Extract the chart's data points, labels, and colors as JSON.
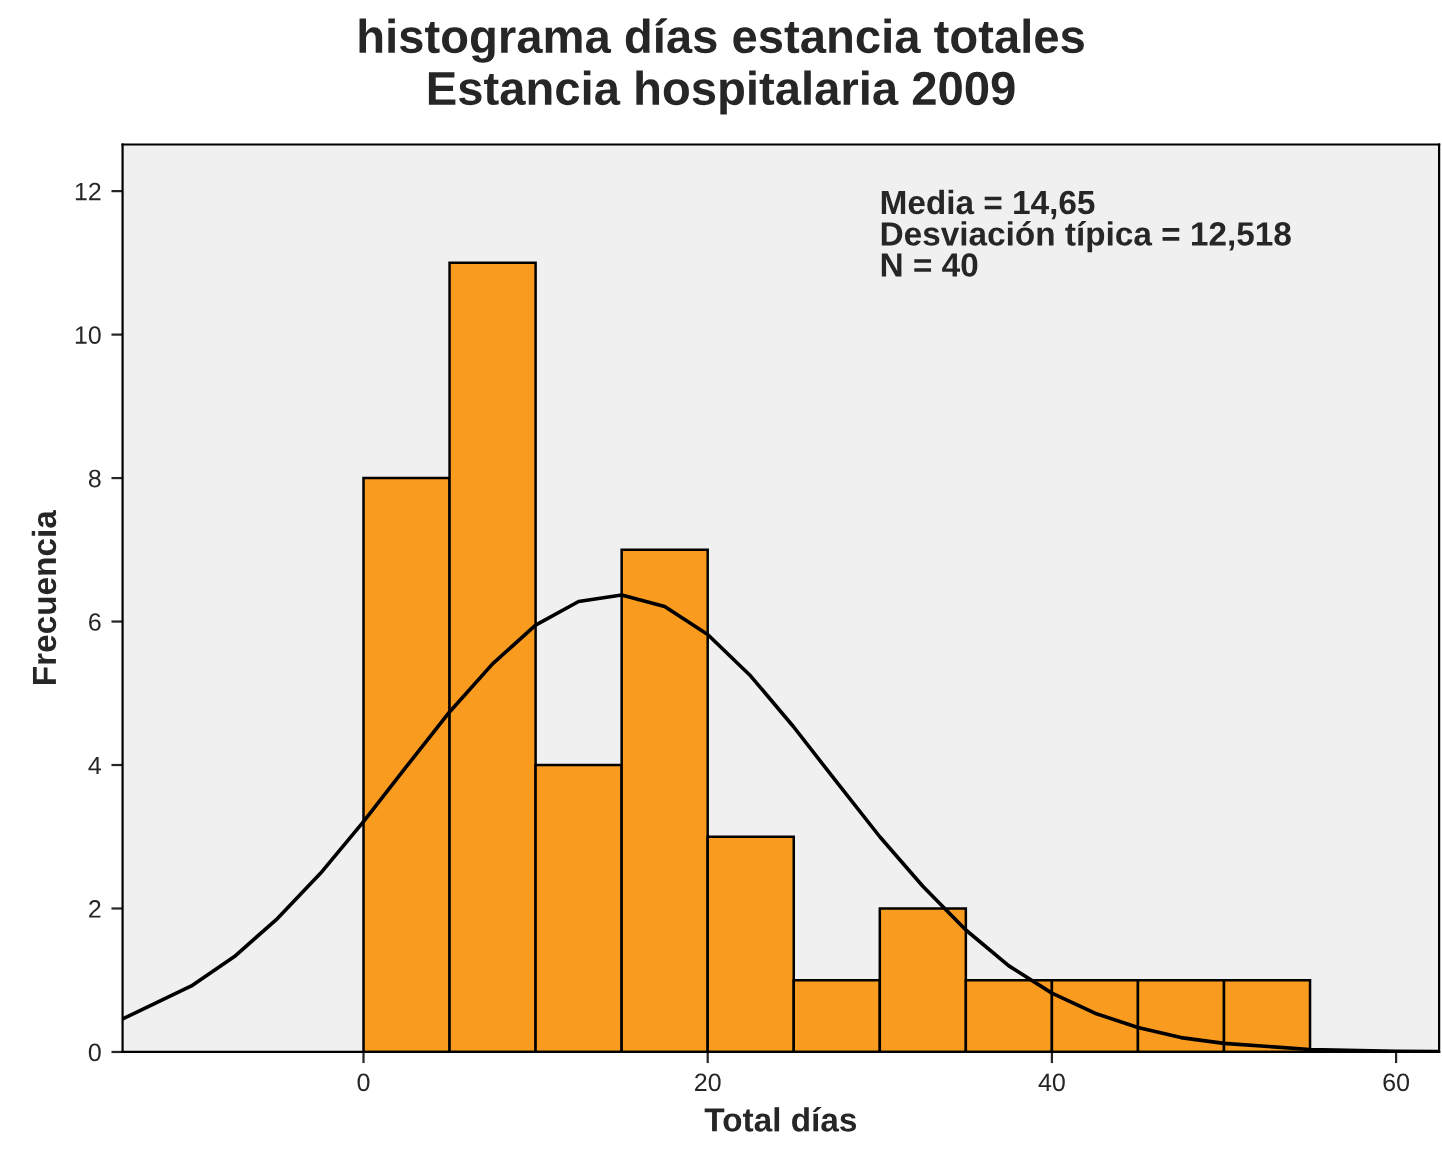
{
  "chart_data": {
    "type": "histogram",
    "title": "histograma días estancia totales",
    "subtitle": "Estancia hospitalaria 2009",
    "xlabel": "Total días",
    "ylabel": "Frecuencia",
    "bins": [
      0,
      5,
      10,
      15,
      20,
      25,
      30,
      35,
      40,
      45,
      50,
      55
    ],
    "values": [
      8,
      11,
      4,
      7,
      3,
      1,
      2,
      1,
      1,
      1,
      1
    ],
    "color": "#f99b1f",
    "series": [
      {
        "type": "line",
        "color": "#000000",
        "x": [
          -14,
          -10,
          -7.5,
          -5,
          -2.5,
          0,
          2.5,
          5,
          7.5,
          10,
          12.5,
          15,
          17.5,
          20,
          22.5,
          25,
          27.5,
          30,
          32.5,
          35,
          37.5,
          40,
          42.5,
          45,
          47.5,
          50,
          55,
          60,
          62.5
        ],
        "values": [
          0.46,
          0.92,
          1.33,
          1.86,
          2.49,
          3.21,
          3.98,
          4.74,
          5.41,
          5.95,
          6.28,
          6.37,
          6.21,
          5.82,
          5.24,
          4.53,
          3.76,
          3.0,
          2.31,
          1.7,
          1.2,
          0.82,
          0.54,
          0.34,
          0.2,
          0.12,
          0.035,
          0.009,
          0.004
        ]
      }
    ],
    "annotations": [
      "Media = 14,65\nDesviación típica = 12,518\nN = 40"
    ],
    "xlim": [
      -14,
      62.5
    ],
    "ylim": [
      0,
      12.65
    ],
    "xticks": [
      0,
      20,
      40,
      60
    ],
    "yticks": [
      0,
      2,
      4,
      6,
      8,
      10,
      12
    ],
    "grid": false,
    "legend": false,
    "marker": "none",
    "line_style": "solid"
  }
}
